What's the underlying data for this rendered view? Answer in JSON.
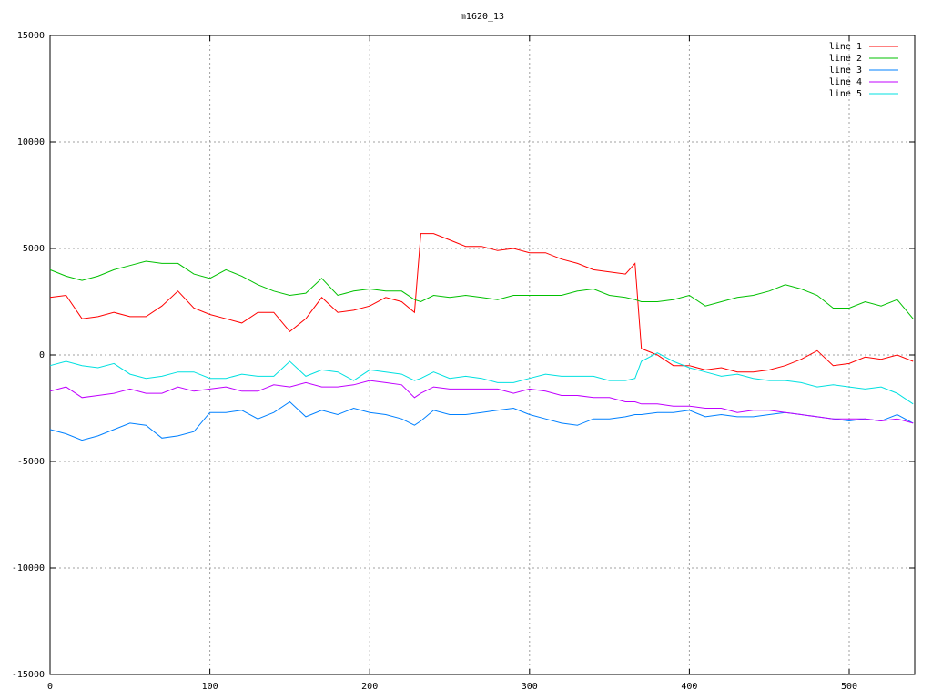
{
  "chart_data": {
    "type": "line",
    "title": "m1620_13",
    "x": [
      0,
      10,
      20,
      30,
      40,
      50,
      60,
      70,
      80,
      90,
      100,
      110,
      120,
      130,
      140,
      150,
      160,
      170,
      180,
      190,
      200,
      210,
      220,
      228,
      232,
      240,
      250,
      260,
      270,
      280,
      290,
      300,
      310,
      320,
      330,
      340,
      350,
      360,
      366,
      370,
      380,
      390,
      400,
      410,
      420,
      430,
      440,
      450,
      460,
      470,
      480,
      490,
      500,
      510,
      520,
      530,
      540
    ],
    "series": [
      {
        "name": "line 1",
        "color": "#ff0000",
        "values": [
          2700,
          2800,
          1700,
          1800,
          2000,
          1800,
          1800,
          2300,
          3000,
          2200,
          1900,
          1700,
          1500,
          2000,
          2000,
          1100,
          1700,
          2700,
          2000,
          2100,
          2300,
          2700,
          2500,
          2000,
          5700,
          5700,
          5400,
          5100,
          5100,
          4900,
          5000,
          4800,
          4800,
          4500,
          4300,
          4000,
          3900,
          3800,
          4300,
          300,
          0,
          -500,
          -500,
          -700,
          -600,
          -800,
          -800,
          -700,
          -500,
          -200,
          200,
          -500,
          -400,
          -100,
          -200,
          0,
          -300
        ]
      },
      {
        "name": "line 2",
        "color": "#00c000",
        "values": [
          4000,
          3700,
          3500,
          3700,
          4000,
          4200,
          4400,
          4300,
          4300,
          3800,
          3600,
          4000,
          3700,
          3300,
          3000,
          2800,
          2900,
          3600,
          2800,
          3000,
          3100,
          3000,
          3000,
          2600,
          2500,
          2800,
          2700,
          2800,
          2700,
          2600,
          2800,
          2800,
          2800,
          2800,
          3000,
          3100,
          2800,
          2700,
          2600,
          2500,
          2500,
          2600,
          2800,
          2300,
          2500,
          2700,
          2800,
          3000,
          3300,
          3100,
          2800,
          2200,
          2200,
          2500,
          2300,
          2600,
          1700
        ]
      },
      {
        "name": "line 3",
        "color": "#0080ff",
        "values": [
          -3500,
          -3700,
          -4000,
          -3800,
          -3500,
          -3200,
          -3300,
          -3900,
          -3800,
          -3600,
          -2700,
          -2700,
          -2600,
          -3000,
          -2700,
          -2200,
          -2900,
          -2600,
          -2800,
          -2500,
          -2700,
          -2800,
          -3000,
          -3300,
          -3100,
          -2600,
          -2800,
          -2800,
          -2700,
          -2600,
          -2500,
          -2800,
          -3000,
          -3200,
          -3300,
          -3000,
          -3000,
          -2900,
          -2800,
          -2800,
          -2700,
          -2700,
          -2600,
          -2900,
          -2800,
          -2900,
          -2900,
          -2800,
          -2700,
          -2800,
          -2900,
          -3000,
          -3100,
          -3000,
          -3100,
          -2800,
          -3200
        ]
      },
      {
        "name": "line 4",
        "color": "#c000ff",
        "values": [
          -1700,
          -1500,
          -2000,
          -1900,
          -1800,
          -1600,
          -1800,
          -1800,
          -1500,
          -1700,
          -1600,
          -1500,
          -1700,
          -1700,
          -1400,
          -1500,
          -1300,
          -1500,
          -1500,
          -1400,
          -1200,
          -1300,
          -1400,
          -2000,
          -1800,
          -1500,
          -1600,
          -1600,
          -1600,
          -1600,
          -1800,
          -1600,
          -1700,
          -1900,
          -1900,
          -2000,
          -2000,
          -2200,
          -2200,
          -2300,
          -2300,
          -2400,
          -2400,
          -2500,
          -2500,
          -2700,
          -2600,
          -2600,
          -2700,
          -2800,
          -2900,
          -3000,
          -3000,
          -3000,
          -3100,
          -3000,
          -3200
        ]
      },
      {
        "name": "line 5",
        "color": "#00e0e0",
        "values": [
          -500,
          -300,
          -500,
          -600,
          -400,
          -900,
          -1100,
          -1000,
          -800,
          -800,
          -1100,
          -1100,
          -900,
          -1000,
          -1000,
          -300,
          -1000,
          -700,
          -800,
          -1200,
          -700,
          -800,
          -900,
          -1200,
          -1100,
          -800,
          -1100,
          -1000,
          -1100,
          -1300,
          -1300,
          -1100,
          -900,
          -1000,
          -1000,
          -1000,
          -1200,
          -1200,
          -1100,
          -300,
          100,
          -300,
          -600,
          -800,
          -1000,
          -900,
          -1100,
          -1200,
          -1200,
          -1300,
          -1500,
          -1400,
          -1500,
          -1600,
          -1500,
          -1800,
          -2300
        ]
      }
    ],
    "xlim": [
      0,
      541
    ],
    "ylim": [
      -15000,
      15000
    ],
    "xticks": [
      0,
      100,
      200,
      300,
      400,
      500
    ],
    "yticks": [
      -15000,
      -10000,
      -5000,
      0,
      5000,
      10000,
      15000
    ],
    "grid": true,
    "legend": "top-right"
  }
}
